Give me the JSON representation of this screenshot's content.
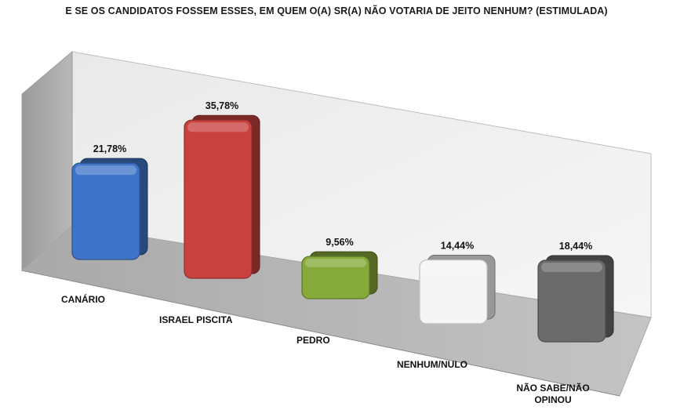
{
  "chart_data": {
    "type": "bar",
    "title": "E SE OS CANDIDATOS FOSSEM ESSES, EM QUEM O(A) SR(A) NÃO VOTARIA DE JEITO NENHUM? (ESTIMULADA)",
    "categories": [
      "CANÁRIO",
      "ISRAEL PISCITA",
      "PEDRO",
      "NENHUM/NULO",
      "NÃO SABE/NÃO OPINOU"
    ],
    "values": [
      21.78,
      35.78,
      9.56,
      14.44,
      18.44
    ],
    "value_labels": [
      "21,78%",
      "35,78%",
      "9,56%",
      "14,44%",
      "18,44%"
    ],
    "colors": [
      "#3f75c8",
      "#c8413f",
      "#86aa3a",
      "#f5f5f5",
      "#6b6b6b"
    ],
    "ylim": [
      0,
      40
    ],
    "grid": false,
    "legend": "none",
    "style": "3d-perspective"
  }
}
